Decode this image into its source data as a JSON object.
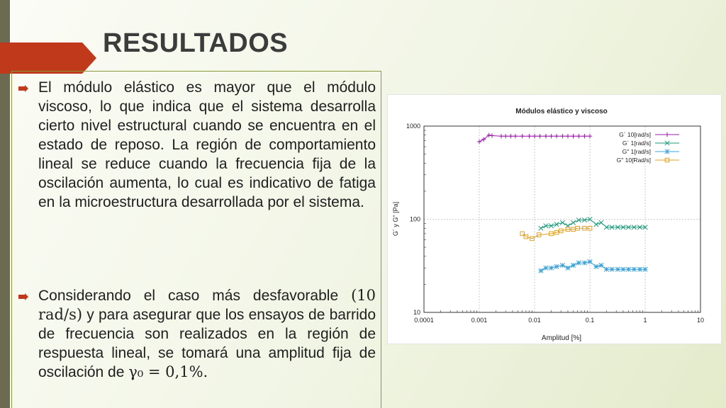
{
  "slide": {
    "title": "RESULTADOS",
    "bullets": [
      {
        "text": "El módulo elástico es mayor que el módulo viscoso, lo que indica que el sistema desarrolla cierto nivel estructural cuando se encuentra en el estado de reposo. La región de comportamiento lineal se reduce cuando la frecuencia fija de la oscilación aumenta, lo cual es indicativo de fatiga en la microestructura desarrollada por el sistema."
      },
      {
        "text_before": "Considerando el caso más desfavorable ",
        "math1": "(10 rad/s)",
        "text_middle": " y para asegurar que los ensayos de barrido de frecuencia son realizados en la región de respuesta lineal, se tomará una amplitud fija de oscilación de ",
        "math2": "γ₀ = 0,1%."
      }
    ],
    "colors": {
      "accent_red": "#c0391b",
      "sidebar": "#6d6a52",
      "border": "#8a9a3a"
    }
  },
  "chart_data": {
    "type": "scatter",
    "title": "Módulos elástico y viscoso",
    "xlabel": "Amplitud [%]",
    "ylabel": "G´ y G\" [Pa]",
    "xscale": "log",
    "yscale": "log",
    "xlim": [
      0.0001,
      10
    ],
    "ylim": [
      10,
      1000
    ],
    "xticks": [
      "0.0001",
      "0.001",
      "0.01",
      "0.1",
      "1",
      "10"
    ],
    "yticks": [
      "10",
      "100",
      "1000"
    ],
    "grid": true,
    "legend_position": "top-right",
    "series": [
      {
        "name": "G´ 10[rad/s]",
        "color": "#9a1aa8",
        "marker": "plus",
        "x": [
          0.001,
          0.0012,
          0.0015,
          0.0017,
          0.0025,
          0.003,
          0.0037,
          0.0045,
          0.006,
          0.008,
          0.01,
          0.0125,
          0.016,
          0.02,
          0.025,
          0.032,
          0.04,
          0.05,
          0.063,
          0.08,
          0.1
        ],
        "y": [
          680,
          720,
          800,
          790,
          780,
          780,
          780,
          780,
          780,
          780,
          780,
          780,
          780,
          780,
          780,
          780,
          780,
          780,
          780,
          780,
          780
        ]
      },
      {
        "name": "G´ 1[rad/s]",
        "color": "#1a9a7a",
        "marker": "x",
        "x": [
          0.013,
          0.016,
          0.02,
          0.025,
          0.032,
          0.04,
          0.05,
          0.063,
          0.08,
          0.1,
          0.13,
          0.16,
          0.2,
          0.25,
          0.32,
          0.4,
          0.5,
          0.63,
          0.8,
          1.0
        ],
        "y": [
          80,
          85,
          85,
          88,
          92,
          85,
          92,
          98,
          98,
          100,
          88,
          92,
          82,
          82,
          82,
          82,
          82,
          82,
          82,
          82
        ]
      },
      {
        "name": "G\" 1[rad/s]",
        "color": "#3aa0d8",
        "marker": "star",
        "x": [
          0.013,
          0.016,
          0.02,
          0.025,
          0.032,
          0.04,
          0.05,
          0.063,
          0.08,
          0.1,
          0.13,
          0.16,
          0.2,
          0.25,
          0.32,
          0.4,
          0.5,
          0.63,
          0.8,
          1.0
        ],
        "y": [
          28,
          30,
          30,
          31,
          32,
          30,
          32,
          34,
          34,
          35,
          31,
          32,
          29,
          29,
          29,
          29,
          29,
          29,
          29,
          29
        ]
      },
      {
        "name": "G\" 10[Rad/s]",
        "color": "#e0a020",
        "marker": "square",
        "x": [
          0.006,
          0.007,
          0.009,
          0.012,
          0.02,
          0.025,
          0.03,
          0.04,
          0.05,
          0.06,
          0.08,
          0.1
        ],
        "y": [
          70,
          65,
          62,
          68,
          70,
          72,
          75,
          78,
          78,
          80,
          80,
          80
        ]
      }
    ]
  }
}
